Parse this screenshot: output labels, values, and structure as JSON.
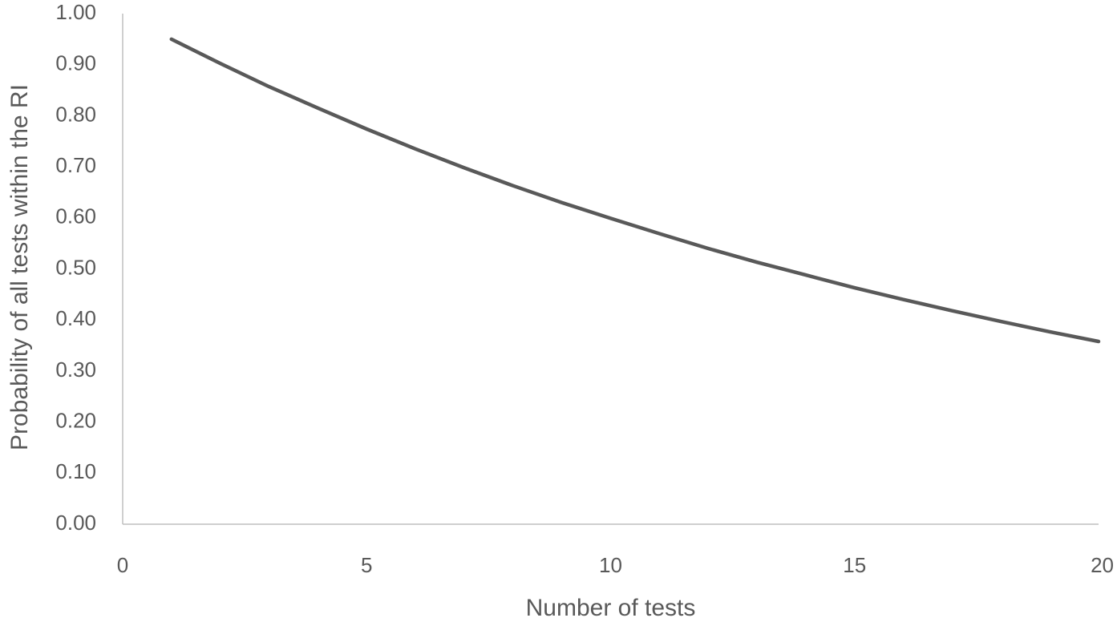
{
  "chart_data": {
    "type": "line",
    "title": "",
    "xlabel": "Number of tests",
    "ylabel": "Probability of all tests within the RI",
    "xlim": [
      0,
      20
    ],
    "ylim": [
      0,
      1.0
    ],
    "x_ticks": [
      0,
      5,
      10,
      15,
      20
    ],
    "x_tick_labels": [
      "0",
      "5",
      "10",
      "15",
      "20"
    ],
    "y_ticks": [
      0,
      0.1,
      0.2,
      0.3,
      0.4,
      0.5,
      0.6,
      0.7,
      0.8,
      0.9,
      1.0
    ],
    "y_tick_labels": [
      "0.00",
      "0.10",
      "0.20",
      "0.30",
      "0.40",
      "0.50",
      "0.60",
      "0.70",
      "0.80",
      "0.90",
      "1.00"
    ],
    "grid": false,
    "series": [
      {
        "x": [
          1,
          2,
          3,
          4,
          5,
          6,
          7,
          8,
          9,
          10,
          11,
          12,
          13,
          14,
          15,
          16,
          17,
          18,
          19,
          20
        ],
        "values": [
          0.95,
          0.9025,
          0.857,
          0.815,
          0.774,
          0.735,
          0.698,
          0.663,
          0.63,
          0.599,
          0.569,
          0.54,
          0.513,
          0.488,
          0.463,
          0.44,
          0.418,
          0.397,
          0.377,
          0.358
        ],
        "color": "#595959"
      }
    ],
    "axis_color": "#bfbfbf",
    "text_color": "#595959"
  }
}
